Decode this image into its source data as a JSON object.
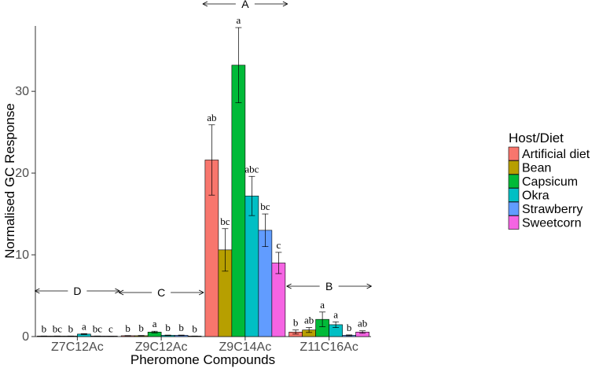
{
  "chart_data": {
    "type": "bar",
    "title": "",
    "xlabel": "Pheromone Compounds",
    "ylabel": "Normalised GC Response",
    "ylim": [
      0,
      38
    ],
    "yticks": [
      0,
      10,
      20,
      30
    ],
    "grid": false,
    "legend": {
      "title": "Host/Diet",
      "position": "right"
    },
    "categories": [
      "Z7C12Ac",
      "Z9C12Ac",
      "Z9C14Ac",
      "Z11C16Ac"
    ],
    "series": [
      {
        "name": "Artificial diet",
        "color": "#F8766D",
        "values": [
          0.05,
          0.1,
          21.6,
          0.55
        ],
        "errors": [
          0.02,
          0.02,
          4.3,
          0.25
        ],
        "letters": [
          "b",
          "b",
          "ab",
          "b"
        ]
      },
      {
        "name": "Bean",
        "color": "#B79F00",
        "values": [
          0.05,
          0.1,
          10.6,
          0.8
        ],
        "errors": [
          0.02,
          0.03,
          2.6,
          0.3
        ],
        "letters": [
          "bc",
          "b",
          "bc",
          "ab"
        ]
      },
      {
        "name": "Capsicum",
        "color": "#00BA38",
        "values": [
          0.05,
          0.55,
          33.2,
          2.1
        ],
        "errors": [
          0.02,
          0.1,
          4.6,
          0.9
        ],
        "letters": [
          "b",
          "a",
          "a",
          "a"
        ]
      },
      {
        "name": "Okra",
        "color": "#00BFC4",
        "values": [
          0.3,
          0.15,
          17.2,
          1.45
        ],
        "errors": [
          0.05,
          0.03,
          2.4,
          0.35
        ],
        "letters": [
          "a",
          "b",
          "abc",
          "a"
        ]
      },
      {
        "name": "Strawberry",
        "color": "#619CFF",
        "values": [
          0.05,
          0.15,
          13.0,
          0.15
        ],
        "errors": [
          0.02,
          0.03,
          2.0,
          0.05
        ],
        "letters": [
          "bc",
          "b",
          "bc",
          "b"
        ]
      },
      {
        "name": "Sweetcorn",
        "color": "#F564E3",
        "values": [
          0.02,
          0.05,
          9.0,
          0.55
        ],
        "errors": [
          0.01,
          0.02,
          1.3,
          0.15
        ],
        "letters": [
          "c",
          "b",
          "c",
          "ab"
        ]
      }
    ],
    "group_labels": [
      "D",
      "C",
      "A",
      "B"
    ]
  }
}
